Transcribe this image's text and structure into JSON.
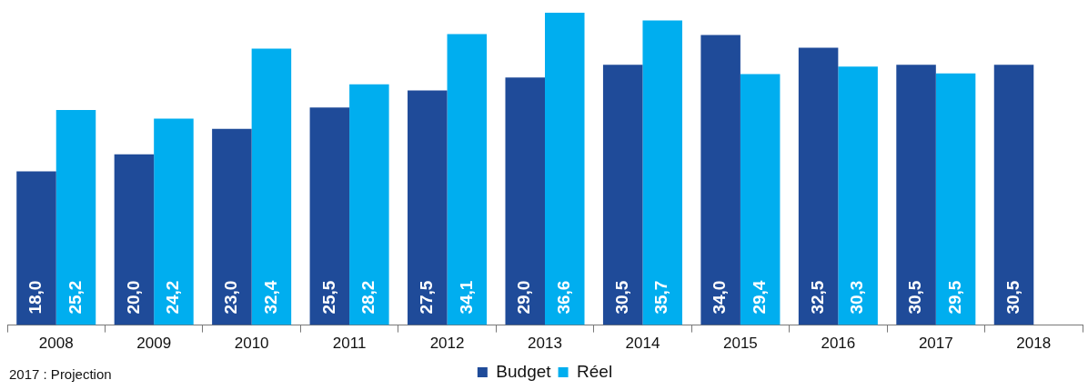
{
  "chart_data": {
    "type": "bar",
    "categories": [
      "2008",
      "2009",
      "2010",
      "2011",
      "2012",
      "2013",
      "2014",
      "2015",
      "2016",
      "2017",
      "2018"
    ],
    "series": [
      {
        "name": "Budget",
        "color": "#1f4b99",
        "values": [
          18.0,
          20.0,
          23.0,
          25.5,
          27.5,
          29.0,
          30.5,
          34.0,
          32.5,
          30.5,
          30.5
        ],
        "value_labels": [
          "18,0",
          "20,0",
          "23,0",
          "25,5",
          "27,5",
          "29,0",
          "30,5",
          "34,0",
          "32,5",
          "30,5",
          "30,5"
        ]
      },
      {
        "name": "Réel",
        "color": "#00aeef",
        "values": [
          25.2,
          24.2,
          32.4,
          28.2,
          34.1,
          36.6,
          35.7,
          29.4,
          30.3,
          29.5,
          null
        ],
        "value_labels": [
          "25,2",
          "24,2",
          "32,4",
          "28,2",
          "34,1",
          "36,6",
          "35,7",
          "29,4",
          "30,3",
          "29,5",
          null
        ]
      }
    ],
    "tick_labels": "x",
    "grid": false,
    "legend": "bottom",
    "annotations": [
      "2017 : Projection"
    ]
  }
}
